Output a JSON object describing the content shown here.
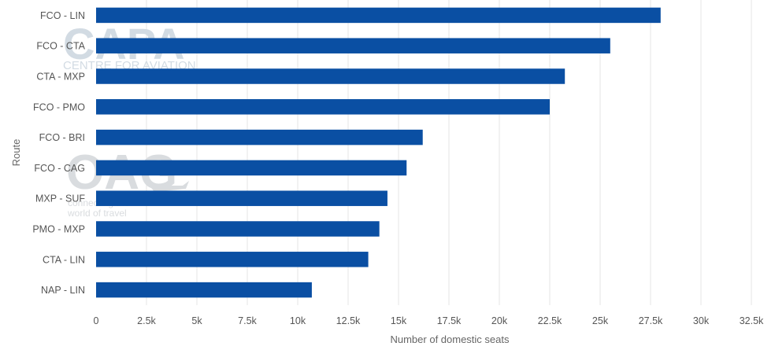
{
  "chart_data": {
    "type": "bar",
    "orientation": "horizontal",
    "categories": [
      "FCO - LIN",
      "FCO - CTA",
      "CTA - MXP",
      "FCO - PMO",
      "FCO - BRI",
      "FCO - CAG",
      "MXP - SUF",
      "PMO - MXP",
      "CTA - LIN",
      "NAP - LIN"
    ],
    "values": [
      28000,
      25500,
      23250,
      22500,
      16200,
      15400,
      14450,
      14050,
      13500,
      10700
    ],
    "xlabel": "Number of domestic seats",
    "ylabel": "Route",
    "xlim": [
      0,
      32500
    ],
    "xticks": [
      0,
      2500,
      5000,
      7500,
      10000,
      12500,
      15000,
      17500,
      20000,
      22500,
      25000,
      27500,
      30000,
      32500
    ],
    "xtick_labels": [
      "0",
      "2.5k",
      "5k",
      "7.5k",
      "10k",
      "12.5k",
      "15k",
      "17.5k",
      "20k",
      "22.5k",
      "25k",
      "27.5k",
      "30k",
      "32.5k"
    ],
    "grid": "vertical",
    "colors": {
      "bar": "#0a4fa3",
      "grid": "#e6e6e6"
    }
  },
  "watermarks": {
    "capa_logo": "CAPA",
    "capa_tagline": "CENTRE FOR AVIATION",
    "oag_logo": "OAG",
    "oag_tagline_1": "connecting the",
    "oag_tagline_2": "world of travel"
  }
}
